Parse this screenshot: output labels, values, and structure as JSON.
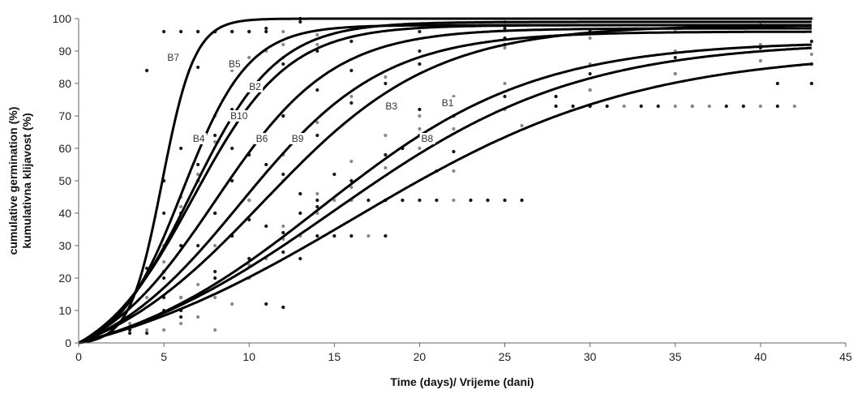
{
  "chart_data": {
    "type": "scatter",
    "xlabel": "Time (days)/ Vrijeme (dani)",
    "ylabel_lines": [
      "cumulative germination (%)",
      "kumulativna klijavost (%)"
    ],
    "xlim": [
      0,
      45
    ],
    "ylim": [
      0,
      100
    ],
    "xticks": [
      0,
      5,
      10,
      15,
      20,
      25,
      30,
      35,
      40,
      45
    ],
    "yticks": [
      0,
      10,
      20,
      30,
      40,
      50,
      60,
      70,
      80,
      90,
      100
    ],
    "grid": false,
    "legend": "none",
    "series": [
      {
        "name": "B7",
        "label_pos": [
          5.2,
          87
        ],
        "model": {
          "asym": 100,
          "k": 1.05,
          "t50": 4.9
        },
        "x": [
          3,
          4,
          4,
          5,
          5,
          6,
          6,
          7,
          7,
          8,
          9,
          10,
          11,
          13
        ],
        "y": [
          8,
          23,
          84,
          40,
          96,
          60,
          96,
          85,
          96,
          96,
          96,
          96,
          97,
          99
        ]
      },
      {
        "name": "B5",
        "label_pos": [
          8.8,
          85
        ],
        "model": {
          "asym": 99,
          "k": 0.4,
          "t50": 6.6
        },
        "x": [
          3,
          5,
          6,
          7,
          8,
          9,
          10,
          11,
          12,
          14,
          16,
          20,
          25
        ],
        "y": [
          5,
          25,
          45,
          62,
          70,
          84,
          88,
          90,
          92,
          95,
          97,
          98,
          99
        ]
      },
      {
        "name": "B2",
        "label_pos": [
          10.0,
          78
        ],
        "model": {
          "asym": 98,
          "k": 0.36,
          "t50": 6.7
        },
        "x": [
          3,
          5,
          6,
          7,
          8,
          9,
          10,
          12,
          14,
          16,
          20,
          25
        ],
        "y": [
          4,
          22,
          40,
          55,
          64,
          72,
          80,
          86,
          90,
          93,
          96,
          97
        ]
      },
      {
        "name": "B4",
        "label_pos": [
          6.7,
          62
        ],
        "model": {
          "asym": 98,
          "k": 0.52,
          "t50": 6.1
        },
        "x": [
          3,
          4,
          5,
          6,
          7,
          8,
          9,
          10,
          12,
          14
        ],
        "y": [
          6,
          14,
          30,
          42,
          52,
          62,
          70,
          80,
          88,
          92
        ]
      },
      {
        "name": "B10",
        "label_pos": [
          8.9,
          69
        ],
        "model": {
          "asym": 97,
          "k": 0.29,
          "t50": 8.0
        },
        "x": [
          3,
          5,
          7,
          8,
          9,
          10,
          12,
          14,
          16,
          20,
          25,
          30
        ],
        "y": [
          3,
          14,
          30,
          40,
          50,
          58,
          70,
          78,
          84,
          90,
          94,
          96
        ]
      },
      {
        "name": "B6",
        "label_pos": [
          10.4,
          62
        ],
        "model": {
          "asym": 96,
          "k": 0.24,
          "t50": 9.5
        },
        "x": [
          4,
          6,
          8,
          10,
          12,
          14,
          16,
          18,
          20,
          25,
          30,
          35
        ],
        "y": [
          4,
          14,
          30,
          44,
          58,
          68,
          76,
          82,
          86,
          91,
          94,
          96
        ]
      },
      {
        "name": "B9",
        "label_pos": [
          12.5,
          62
        ],
        "model": {
          "asym": 98,
          "k": 0.2,
          "t50": 10.8
        },
        "x": [
          4,
          6,
          8,
          10,
          12,
          14,
          16,
          18,
          20,
          25,
          30,
          40
        ],
        "y": [
          3,
          10,
          22,
          38,
          52,
          64,
          74,
          80,
          86,
          92,
          96,
          98
        ]
      },
      {
        "name": "B3",
        "label_pos": [
          18.0,
          72
        ],
        "model": {
          "asym": 93,
          "k": 0.16,
          "t50": 14.2
        },
        "x": [
          5,
          8,
          10,
          12,
          14,
          16,
          18,
          20,
          22,
          25,
          30,
          35,
          40,
          43
        ],
        "y": [
          4,
          14,
          26,
          36,
          46,
          56,
          64,
          70,
          76,
          80,
          86,
          90,
          92,
          93
        ]
      },
      {
        "name": "B1",
        "label_pos": [
          21.3,
          73
        ],
        "model": {
          "asym": 93,
          "k": 0.14,
          "t50": 15.0
        },
        "x": [
          6,
          10,
          12,
          14,
          16,
          18,
          20,
          22,
          25,
          30,
          35,
          40,
          43
        ],
        "y": [
          8,
          26,
          34,
          42,
          50,
          58,
          64,
          70,
          76,
          83,
          88,
          91,
          93
        ]
      },
      {
        "name": "B8",
        "label_pos": [
          20.1,
          62
        ],
        "model": {
          "asym": 90,
          "k": 0.12,
          "t50": 16.2
        },
        "x": [
          6,
          10,
          12,
          14,
          16,
          18,
          20,
          22,
          25,
          30,
          35,
          40,
          43
        ],
        "y": [
          6,
          24,
          32,
          40,
          48,
          54,
          60,
          66,
          72,
          78,
          83,
          87,
          89
        ]
      }
    ],
    "scatter_points": {
      "x": [
        4,
        5,
        5,
        6,
        6,
        7,
        7,
        7,
        8,
        8,
        8,
        9,
        9,
        9,
        10,
        10,
        10,
        11,
        11,
        11,
        11,
        12,
        12,
        12,
        12,
        13,
        13,
        13,
        13,
        14,
        15,
        15,
        15,
        16,
        16,
        17,
        17,
        18,
        18,
        19,
        19,
        20,
        20,
        21,
        21,
        22,
        22,
        23,
        24,
        25,
        26,
        26,
        28,
        29,
        30,
        30,
        31,
        32,
        33,
        34,
        35,
        35,
        36,
        37,
        38,
        39,
        40,
        41,
        41,
        42,
        43,
        43,
        43,
        28,
        24,
        22,
        20,
        30,
        36,
        12,
        14,
        16,
        18,
        19,
        12,
        13,
        11,
        10,
        9,
        8,
        7,
        6,
        5
      ],
      "y": [
        84,
        50,
        20,
        96,
        30,
        96,
        8,
        50,
        96,
        4,
        40,
        96,
        12,
        60,
        96,
        20,
        44,
        96,
        26,
        55,
        12,
        96,
        28,
        70,
        11,
        100,
        26,
        33,
        46,
        44,
        44,
        33,
        52,
        44,
        33,
        44,
        33,
        44,
        33,
        44,
        60,
        44,
        66,
        44,
        53,
        44,
        59,
        44,
        44,
        44,
        44,
        67,
        73,
        73,
        73,
        78,
        73,
        73,
        73,
        73,
        73,
        83,
        73,
        73,
        73,
        73,
        73,
        73,
        80,
        73,
        80,
        86,
        100,
        76,
        44,
        53,
        72,
        73,
        73,
        11,
        33,
        44,
        44,
        44,
        50,
        40,
        36,
        38,
        33,
        20,
        18,
        14,
        10
      ]
    },
    "annotations": [
      "B7",
      "B5",
      "B2",
      "B4",
      "B10",
      "B6",
      "B9",
      "B3",
      "B1",
      "B8"
    ]
  }
}
